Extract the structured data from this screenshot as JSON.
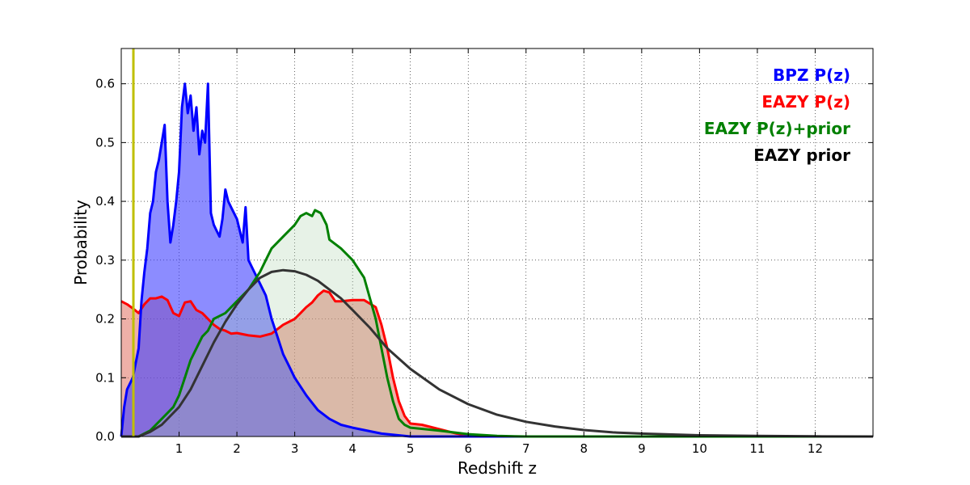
{
  "chart_data": {
    "type": "area",
    "title": "",
    "xlabel": "Redshift z",
    "ylabel": "Probability",
    "xlim": [
      0,
      13
    ],
    "ylim": [
      0,
      0.66
    ],
    "xticks": [
      1,
      2,
      3,
      4,
      5,
      6,
      7,
      8,
      9,
      10,
      11,
      12
    ],
    "yticks": [
      0.0,
      0.1,
      0.2,
      0.3,
      0.4,
      0.5,
      0.6
    ],
    "grid": true,
    "legend_position": "top-right",
    "vertical_line": {
      "x": 0.21,
      "color": "#bfbf00"
    },
    "series": [
      {
        "name": "EAZY P(z)",
        "color": "#ff0000",
        "fill": "#e07060",
        "fill_opacity": 0.55,
        "x": [
          0.0,
          0.1,
          0.2,
          0.3,
          0.4,
          0.5,
          0.6,
          0.7,
          0.8,
          0.9,
          1.0,
          1.1,
          1.2,
          1.3,
          1.4,
          1.5,
          1.6,
          1.7,
          1.8,
          1.9,
          2.0,
          2.2,
          2.4,
          2.6,
          2.8,
          3.0,
          3.1,
          3.2,
          3.3,
          3.4,
          3.5,
          3.6,
          3.7,
          3.8,
          4.0,
          4.2,
          4.4,
          4.5,
          4.6,
          4.7,
          4.8,
          4.9,
          5.0,
          5.2,
          5.4,
          5.6,
          5.8,
          6.0,
          6.5,
          13.0
        ],
        "y": [
          0.23,
          0.225,
          0.218,
          0.21,
          0.225,
          0.235,
          0.235,
          0.238,
          0.232,
          0.21,
          0.205,
          0.228,
          0.23,
          0.215,
          0.21,
          0.2,
          0.19,
          0.183,
          0.18,
          0.175,
          0.176,
          0.172,
          0.17,
          0.175,
          0.19,
          0.2,
          0.21,
          0.22,
          0.228,
          0.24,
          0.248,
          0.245,
          0.23,
          0.23,
          0.232,
          0.232,
          0.22,
          0.19,
          0.15,
          0.1,
          0.06,
          0.035,
          0.022,
          0.02,
          0.015,
          0.01,
          0.005,
          0.002,
          0.0,
          0.0
        ]
      },
      {
        "name": "BPZ P(z)",
        "color": "#0000ff",
        "fill": "#4040ff",
        "fill_opacity": 0.6,
        "x": [
          0.0,
          0.05,
          0.1,
          0.2,
          0.3,
          0.35,
          0.4,
          0.45,
          0.5,
          0.55,
          0.6,
          0.65,
          0.7,
          0.75,
          0.8,
          0.85,
          0.9,
          0.95,
          1.0,
          1.05,
          1.1,
          1.15,
          1.2,
          1.25,
          1.3,
          1.35,
          1.4,
          1.45,
          1.5,
          1.55,
          1.6,
          1.65,
          1.7,
          1.75,
          1.8,
          1.85,
          1.9,
          2.0,
          2.1,
          2.15,
          2.2,
          2.3,
          2.4,
          2.5,
          2.6,
          2.7,
          2.8,
          2.9,
          3.0,
          3.2,
          3.4,
          3.6,
          3.8,
          4.0,
          4.5,
          5.0,
          13.0
        ],
        "y": [
          0.0,
          0.05,
          0.08,
          0.1,
          0.15,
          0.23,
          0.28,
          0.32,
          0.38,
          0.4,
          0.45,
          0.47,
          0.5,
          0.53,
          0.4,
          0.33,
          0.36,
          0.4,
          0.45,
          0.56,
          0.6,
          0.55,
          0.58,
          0.52,
          0.56,
          0.48,
          0.52,
          0.5,
          0.6,
          0.38,
          0.36,
          0.35,
          0.34,
          0.37,
          0.42,
          0.4,
          0.39,
          0.37,
          0.33,
          0.39,
          0.3,
          0.28,
          0.26,
          0.24,
          0.2,
          0.17,
          0.14,
          0.12,
          0.1,
          0.07,
          0.045,
          0.03,
          0.02,
          0.015,
          0.005,
          0.0,
          0.0
        ]
      },
      {
        "name": "EAZY P(z)+prior",
        "color": "#008000",
        "fill": "#a8d0a8",
        "fill_opacity": 0.28,
        "x": [
          0.0,
          0.3,
          0.5,
          0.7,
          0.9,
          1.0,
          1.1,
          1.2,
          1.3,
          1.4,
          1.5,
          1.6,
          1.8,
          2.0,
          2.2,
          2.4,
          2.5,
          2.6,
          2.8,
          3.0,
          3.1,
          3.2,
          3.3,
          3.35,
          3.45,
          3.55,
          3.6,
          3.8,
          4.0,
          4.2,
          4.4,
          4.5,
          4.6,
          4.7,
          4.8,
          4.9,
          5.0,
          5.5,
          6.0,
          6.5,
          7.0,
          13.0
        ],
        "y": [
          0.0,
          0.0,
          0.01,
          0.03,
          0.05,
          0.07,
          0.1,
          0.13,
          0.15,
          0.17,
          0.18,
          0.2,
          0.21,
          0.23,
          0.25,
          0.28,
          0.3,
          0.32,
          0.34,
          0.36,
          0.375,
          0.38,
          0.375,
          0.385,
          0.38,
          0.36,
          0.335,
          0.32,
          0.3,
          0.27,
          0.2,
          0.15,
          0.1,
          0.06,
          0.03,
          0.02,
          0.015,
          0.01,
          0.004,
          0.001,
          0.0,
          0.0
        ]
      },
      {
        "name": "EAZY prior",
        "color": "#333333",
        "fill": "none",
        "x": [
          0.0,
          0.3,
          0.5,
          0.7,
          1.0,
          1.2,
          1.4,
          1.6,
          1.8,
          2.0,
          2.2,
          2.4,
          2.6,
          2.8,
          3.0,
          3.2,
          3.4,
          3.6,
          3.8,
          4.0,
          4.3,
          4.6,
          5.0,
          5.5,
          6.0,
          6.5,
          7.0,
          7.5,
          8.0,
          8.5,
          9.0,
          10.0,
          11.0,
          12.0,
          13.0
        ],
        "y": [
          0.0,
          0.0,
          0.008,
          0.02,
          0.05,
          0.08,
          0.12,
          0.16,
          0.195,
          0.225,
          0.25,
          0.27,
          0.28,
          0.283,
          0.281,
          0.275,
          0.265,
          0.25,
          0.235,
          0.215,
          0.185,
          0.15,
          0.115,
          0.08,
          0.055,
          0.037,
          0.025,
          0.017,
          0.011,
          0.007,
          0.005,
          0.002,
          0.001,
          0.0003,
          0.0
        ]
      }
    ],
    "legend": [
      {
        "label": "BPZ P(z)",
        "color": "#0000ff"
      },
      {
        "label": "EAZY P(z)",
        "color": "#ff0000"
      },
      {
        "label": "EAZY P(z)+prior",
        "color": "#008000"
      },
      {
        "label": "EAZY prior",
        "color": "#000000"
      }
    ]
  }
}
